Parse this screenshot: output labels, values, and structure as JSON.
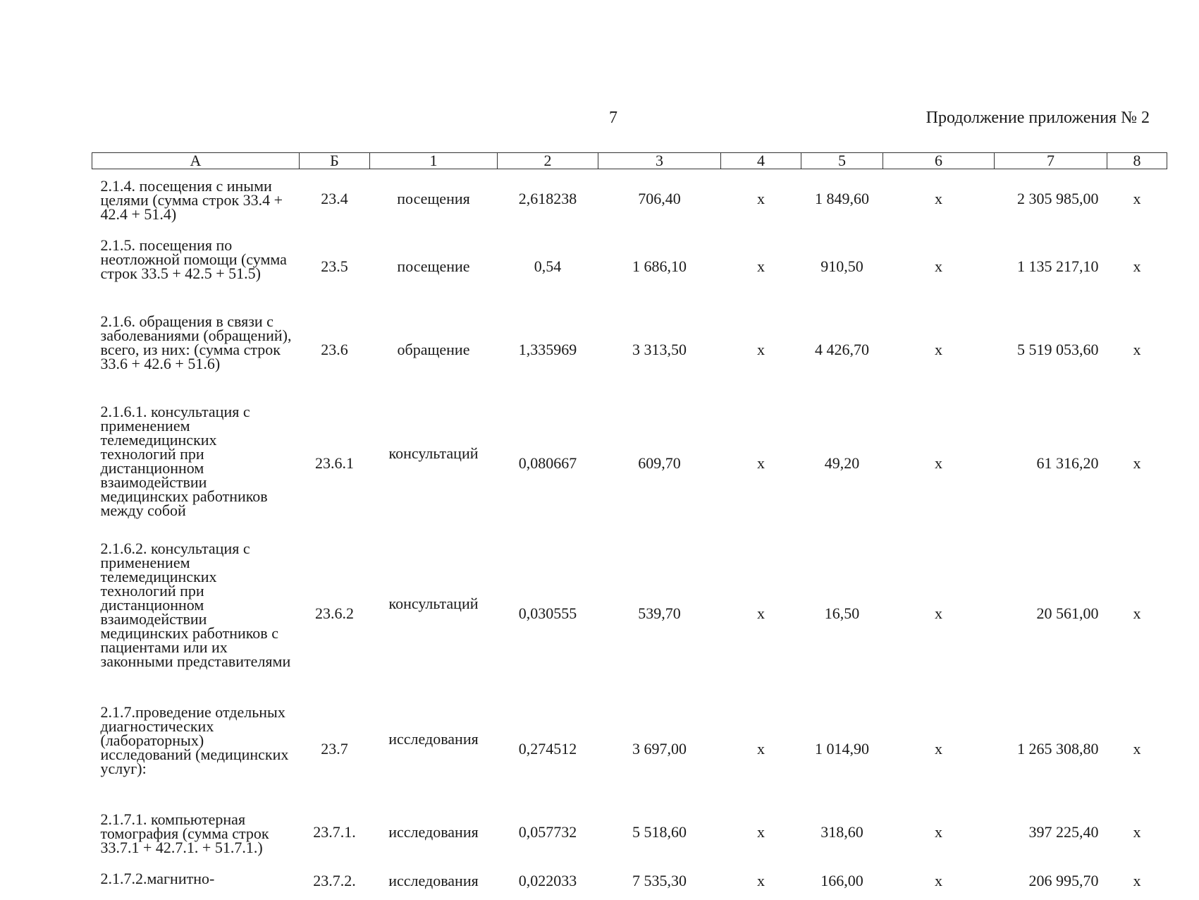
{
  "header": {
    "page_number": "7",
    "continuation": "Продолжение приложения № 2"
  },
  "table": {
    "columns": [
      "А",
      "Б",
      "1",
      "2",
      "3",
      "4",
      "5",
      "6",
      "7",
      "8"
    ],
    "rows": [
      {
        "name": "2.1.4. посещения с иными целями (сумма строк 33.4 + 42.4 + 51.4)",
        "code": "23.4",
        "unit": "посещения",
        "c2": "2,618238",
        "c3": "706,40",
        "c4": "х",
        "c5": "1 849,60",
        "c6": "х",
        "c7": "2 305 985,00",
        "c8": "х"
      },
      {
        "name": "2.1.5. посещения по неотложной помощи (сумма строк 33.5 + 42.5 + 51.5)",
        "code": "23.5",
        "unit": "посещение",
        "c2": "0,54",
        "c3": "1 686,10",
        "c4": "х",
        "c5": "910,50",
        "c6": "х",
        "c7": "1 135 217,10",
        "c8": "х"
      },
      {
        "name": "2.1.6. обращения в связи с заболеваниями (обращений), всего, из них: (сумма строк 33.6 + 42.6 + 51.6)",
        "code": "23.6",
        "unit": "обращение",
        "c2": "1,335969",
        "c3": "3 313,50",
        "c4": "х",
        "c5": "4 426,70",
        "c6": "х",
        "c7": "5 519 053,60",
        "c8": "х"
      },
      {
        "name": "2.1.6.1. консультация с применением телемедицинских технологий при дистанционном взаимодействии медицинских работников между собой",
        "code": "23.6.1",
        "unit": "консультаций",
        "c2": "0,080667",
        "c3": "609,70",
        "c4": "х",
        "c5": "49,20",
        "c6": "х",
        "c7": "61 316,20",
        "c8": "х"
      },
      {
        "name": "2.1.6.2. консультация с применением телемедицинских технологий при дистанционном взаимодействии медицинских работников с пациентами или их законными представителями",
        "code": "23.6.2",
        "unit": "консультаций",
        "c2": "0,030555",
        "c3": "539,70",
        "c4": "х",
        "c5": "16,50",
        "c6": "х",
        "c7": "20 561,00",
        "c8": "х"
      },
      {
        "name": "2.1.7.проведение отдельных диагностических (лабораторных) исследований (медицинских услуг):",
        "code": "23.7",
        "unit": "исследования",
        "c2": "0,274512",
        "c3": "3 697,00",
        "c4": "х",
        "c5": "1 014,90",
        "c6": "х",
        "c7": "1 265 308,80",
        "c8": "х"
      },
      {
        "name": "2.1.7.1. компьютерная томография (сумма строк 33.7.1 + 42.7.1. + 51.7.1.)",
        "code": "23.7.1.",
        "unit": "исследования",
        "c2": "0,057732",
        "c3": "5 518,60",
        "c4": "х",
        "c5": "318,60",
        "c6": "х",
        "c7": "397 225,40",
        "c8": "х"
      },
      {
        "name": "2.1.7.2.магнитно-",
        "code": "23.7.2.",
        "unit": "исследования",
        "c2": "0,022033",
        "c3": "7 535,30",
        "c4": "х",
        "c5": "166,00",
        "c6": "х",
        "c7": "206 995,70",
        "c8": "х"
      }
    ]
  }
}
